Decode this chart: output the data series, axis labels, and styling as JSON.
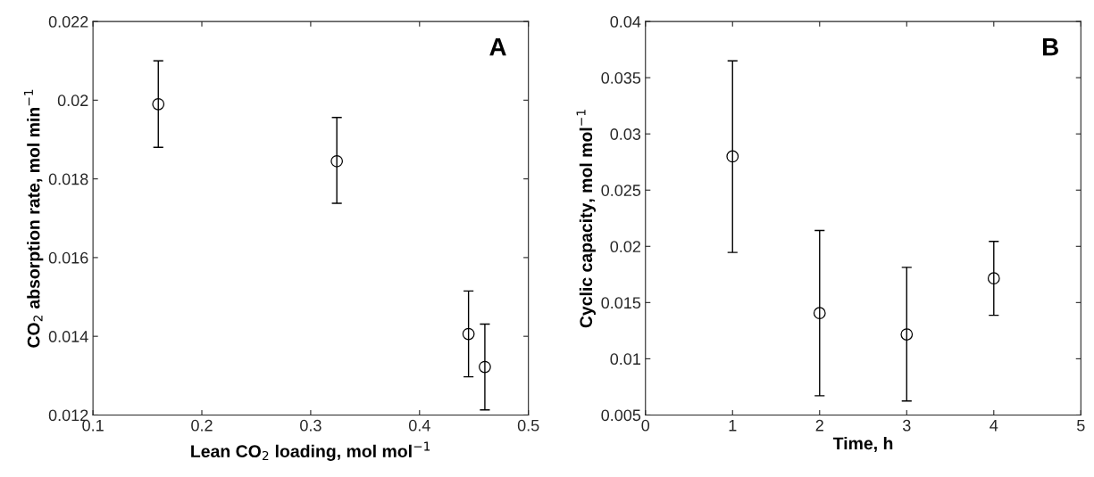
{
  "chart_data": [
    {
      "type": "scatter",
      "xlabel": "Lean CO$_{2}$ loading, mol mol$^{−1}$",
      "ylabel": "CO$_{2}$ absorption rate, mol min$^{−1}$",
      "annotations": [
        "A"
      ],
      "x": [
        0.16,
        0.324,
        0.445,
        0.46
      ],
      "series": [
        {
          "color": "#000000",
          "values": [
            0.0199,
            0.01845,
            0.01406,
            0.01322
          ],
          "errors": [
            [
              0.0188,
              0.021
            ],
            [
              0.01738,
              0.01956
            ],
            [
              0.01297,
              0.01515
            ],
            [
              0.01213,
              0.01431
            ]
          ]
        }
      ],
      "xlim": [
        0.1,
        0.5
      ],
      "xticks": [
        0.1,
        0.2,
        0.3,
        0.4,
        0.5
      ],
      "ylim": [
        0.012,
        0.022
      ],
      "yticks": [
        0.012,
        0.014,
        0.016,
        0.018,
        0.02,
        0.022
      ],
      "marker": "circle",
      "grid": false,
      "legend": false
    },
    {
      "type": "scatter",
      "xlabel": "Time, h",
      "ylabel": "Cyclic capacity, mol mol$^{−1}$",
      "annotations": [
        "B"
      ],
      "x": [
        1,
        2,
        3,
        4
      ],
      "series": [
        {
          "color": "#000000",
          "values": [
            0.028,
            0.01406,
            0.01217,
            0.01715
          ],
          "errors": [
            [
              0.01946,
              0.0365
            ],
            [
              0.00671,
              0.02141
            ],
            [
              0.00624,
              0.01813
            ],
            [
              0.01387,
              0.02044
            ]
          ]
        }
      ],
      "xlim": [
        0,
        5
      ],
      "xticks": [
        0,
        1,
        2,
        3,
        4,
        5
      ],
      "ylim": [
        0.005,
        0.04
      ],
      "yticks": [
        0.005,
        0.01,
        0.015,
        0.02,
        0.025,
        0.03,
        0.035,
        0.04
      ],
      "marker": "circle",
      "grid": false,
      "legend": false
    }
  ]
}
